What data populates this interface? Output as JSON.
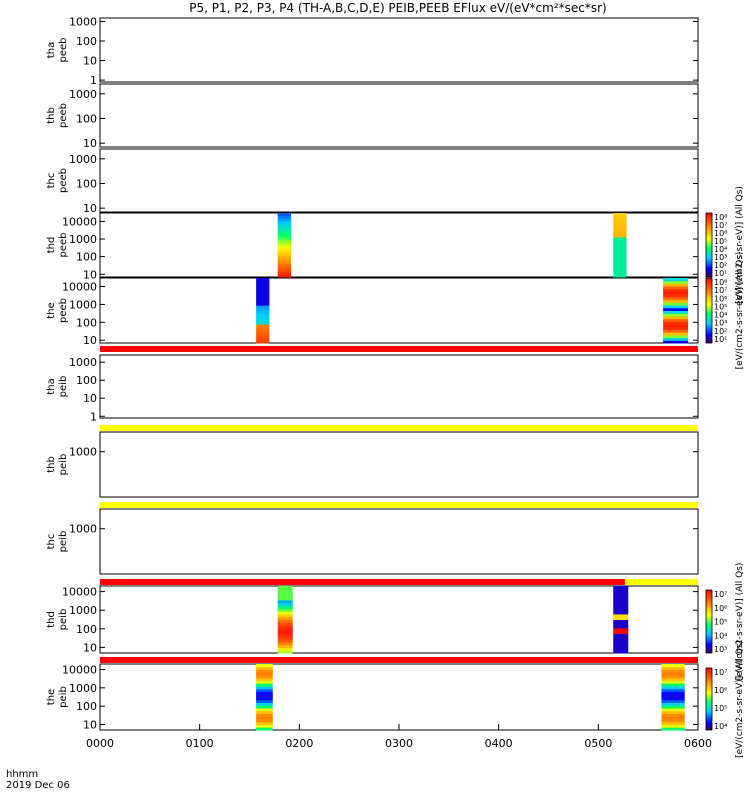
{
  "title": "P5, P1, P2, P3, P4 (TH-A,B,C,D,E) PEIB,PEEB EFlux eV/(eV*cm²*sec*sr)",
  "x_axis": {
    "tick_labels": [
      "0000",
      "0100",
      "0200",
      "0300",
      "0400",
      "0500",
      "0600"
    ],
    "corner_label_1": "hhmm",
    "corner_label_2": "2019 Dec 06"
  },
  "colorbars": [
    {
      "label": "[eV/(cm2-s-sr-eV)] (All Qs)",
      "tick_labels": [
        "10⁸",
        "10⁷",
        "10⁶",
        "10⁵",
        "10⁴",
        "10³",
        "10²",
        "10¹"
      ]
    },
    {
      "label": "[eV/(cm2-s-sr-eV)] (All Qs)",
      "tick_labels": [
        "10⁸",
        "10⁷",
        "10⁶",
        "10⁵",
        "10⁴",
        "10³",
        "10²",
        "10¹"
      ]
    },
    {
      "label": "[eV/(cm2-s-sr-eV)] (All Qs)",
      "tick_labels": [
        "10⁷",
        "10⁶",
        "10⁵",
        "10⁴",
        "10³"
      ]
    },
    {
      "label": "[eV/(cm2-s-sr-eV)] (All Qs)",
      "tick_labels": [
        "10⁷",
        "10⁶",
        "10⁵",
        "10⁴"
      ]
    }
  ],
  "chart_data": {
    "type": "heatmap",
    "title": "P5, P1, P2, P3, P4 (TH-A,B,C,D,E) PEIB,PEEB EFlux eV/(eV*cm²*sec*sr)",
    "x_range_hhmm": [
      "0000",
      "0600"
    ],
    "panels": [
      {
        "label_1": "tha",
        "label_2": "peeb",
        "y_ticks": [
          "1000",
          "100",
          "10",
          "1"
        ],
        "yscale": "log",
        "ylim": [
          0.8,
          1500
        ],
        "bars": [],
        "status_bar": null
      },
      {
        "label_1": "thb",
        "label_2": "peeb",
        "y_ticks": [
          "1000",
          "100",
          "10"
        ],
        "yscale": "log",
        "ylim": [
          7,
          2500
        ],
        "bars": [],
        "status_bar": null
      },
      {
        "label_1": "thc",
        "label_2": "peeb",
        "y_ticks": [
          "1000",
          "100",
          "10"
        ],
        "yscale": "log",
        "ylim": [
          7,
          2500
        ],
        "bars": [],
        "status_bar": null
      },
      {
        "label_1": "thd",
        "label_2": "peeb",
        "y_ticks": [
          "10000",
          "1000",
          "100",
          "10"
        ],
        "yscale": "log",
        "ylim": [
          7,
          30000
        ],
        "bars": [
          {
            "start": "0147",
            "end": "0155",
            "profile": "hot"
          },
          {
            "start": "0509",
            "end": "0517",
            "profile": "hot_low"
          }
        ],
        "status_bar": null
      },
      {
        "label_1": "the",
        "label_2": "peeb",
        "y_ticks": [
          "10000",
          "1000",
          "100",
          "10"
        ],
        "yscale": "log",
        "ylim": [
          7,
          30000
        ],
        "bars": [
          {
            "start": "0134",
            "end": "0142",
            "profile": "mid"
          },
          {
            "start": "0539",
            "end": "0554",
            "profile": "mixed"
          }
        ],
        "status_bar": [
          {
            "start": "0000",
            "end": "0600",
            "color": "#ff0000"
          }
        ]
      },
      {
        "label_1": "tha",
        "label_2": "peib",
        "y_ticks": [
          "1000",
          "100",
          "10",
          "1"
        ],
        "yscale": "log",
        "ylim": [
          0.8,
          2500
        ],
        "bars": [],
        "status_bar": [
          {
            "start": "0000",
            "end": "0600",
            "color": "#ffff00"
          }
        ]
      },
      {
        "label_1": "thb",
        "label_2": "peib",
        "y_ticks": [
          "1000"
        ],
        "yscale": "log",
        "ylim": [
          80,
          3000
        ],
        "bars": [],
        "status_bar": [
          {
            "start": "0000",
            "end": "0600",
            "color": "#ffff00"
          }
        ]
      },
      {
        "label_1": "thc",
        "label_2": "peib",
        "y_ticks": [
          "1000"
        ],
        "yscale": "log",
        "ylim": [
          80,
          3000
        ],
        "bars": [],
        "status_bar": [
          {
            "start": "0000",
            "end": "0516",
            "color": "#ff0000"
          },
          {
            "start": "0516",
            "end": "0600",
            "color": "#ffff00"
          }
        ]
      },
      {
        "label_1": "thd",
        "label_2": "peib",
        "y_ticks": [
          "10000",
          "1000",
          "100",
          "10"
        ],
        "yscale": "log",
        "ylim": [
          5,
          20000
        ],
        "bars": [
          {
            "start": "0147",
            "end": "0156",
            "profile": "ion"
          },
          {
            "start": "0509",
            "end": "0518",
            "profile": "ion_band"
          }
        ],
        "status_bar": [
          {
            "start": "0000",
            "end": "0600",
            "color": "#ff0000"
          }
        ]
      },
      {
        "label_1": "the",
        "label_2": "peib",
        "y_ticks": [
          "10000",
          "1000",
          "100",
          "10"
        ],
        "yscale": "log",
        "ylim": [
          5,
          20000
        ],
        "bars": [
          {
            "start": "0134",
            "end": "0144",
            "profile": "ion_wide"
          },
          {
            "start": "0538",
            "end": "0552",
            "profile": "ion_wide"
          }
        ],
        "status_bar": null
      }
    ]
  }
}
